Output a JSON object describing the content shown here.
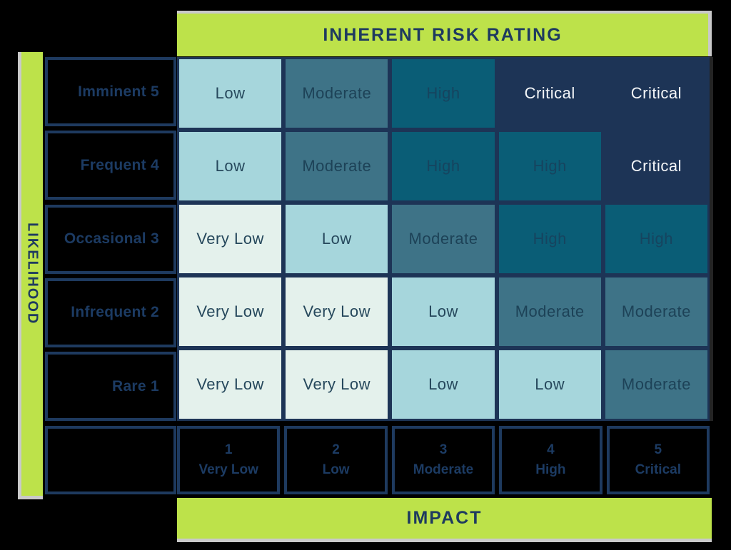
{
  "banners": {
    "title": "INHERENT RISK RATING",
    "y_axis": "LIKELIHOOD",
    "x_axis": "IMPACT"
  },
  "matrix": {
    "rows": [
      {
        "label": "Imminent 5",
        "cells": [
          {
            "label": "Low",
            "level": "low"
          },
          {
            "label": "Moderate",
            "level": "moderate"
          },
          {
            "label": "High",
            "level": "high"
          },
          {
            "label": "Critical",
            "level": "critical"
          },
          {
            "label": "Critical",
            "level": "critical"
          }
        ]
      },
      {
        "label": "Frequent 4",
        "cells": [
          {
            "label": "Low",
            "level": "low"
          },
          {
            "label": "Moderate",
            "level": "moderate"
          },
          {
            "label": "High",
            "level": "high"
          },
          {
            "label": "High",
            "level": "high"
          },
          {
            "label": "Critical",
            "level": "critical"
          }
        ]
      },
      {
        "label": "Occasional 3",
        "cells": [
          {
            "label": "Very Low",
            "level": "verylow"
          },
          {
            "label": "Low",
            "level": "low"
          },
          {
            "label": "Moderate",
            "level": "moderate"
          },
          {
            "label": "High",
            "level": "high"
          },
          {
            "label": "High",
            "level": "high"
          }
        ]
      },
      {
        "label": "Infrequent 2",
        "cells": [
          {
            "label": "Very Low",
            "level": "verylow"
          },
          {
            "label": "Very Low",
            "level": "verylow"
          },
          {
            "label": "Low",
            "level": "low"
          },
          {
            "label": "Moderate",
            "level": "moderate"
          },
          {
            "label": "Moderate",
            "level": "moderate"
          }
        ]
      },
      {
        "label": "Rare 1",
        "cells": [
          {
            "label": "Very Low",
            "level": "verylow"
          },
          {
            "label": "Very Low",
            "level": "verylow"
          },
          {
            "label": "Low",
            "level": "low"
          },
          {
            "label": "Low",
            "level": "low"
          },
          {
            "label": "Moderate",
            "level": "moderate"
          }
        ]
      }
    ]
  },
  "impact_scale": [
    {
      "number": "1",
      "name": "Very Low"
    },
    {
      "number": "2",
      "name": "Low"
    },
    {
      "number": "3",
      "name": "Moderate"
    },
    {
      "number": "4",
      "name": "High"
    },
    {
      "number": "5",
      "name": "Critical"
    }
  ],
  "colors": {
    "accent_green": "#bde24a",
    "navy": "#1e3a5f",
    "critical_bg": "#1d3456",
    "high_bg": "#0a5d76",
    "moderate_bg": "#3e7387",
    "low_bg": "#a6d6dc",
    "very_low_bg": "#e4f1ec",
    "shadow_grey": "#c9c9c9",
    "critical_text": "#f5f7f9"
  },
  "chart_data": {
    "type": "heatmap",
    "title": "INHERENT RISK RATING",
    "xlabel": "IMPACT",
    "ylabel": "LIKELIHOOD",
    "x_categories": [
      "1 Very Low",
      "2 Low",
      "3 Moderate",
      "4 High",
      "5 Critical"
    ],
    "y_categories": [
      "Imminent 5",
      "Frequent 4",
      "Occasional 3",
      "Infrequent 2",
      "Rare 1"
    ],
    "values": [
      [
        "Low",
        "Moderate",
        "High",
        "Critical",
        "Critical"
      ],
      [
        "Low",
        "Moderate",
        "High",
        "High",
        "Critical"
      ],
      [
        "Very Low",
        "Low",
        "Moderate",
        "High",
        "High"
      ],
      [
        "Very Low",
        "Very Low",
        "Low",
        "Moderate",
        "Moderate"
      ],
      [
        "Very Low",
        "Very Low",
        "Low",
        "Low",
        "Moderate"
      ]
    ],
    "legend": "none",
    "grid": "on"
  }
}
